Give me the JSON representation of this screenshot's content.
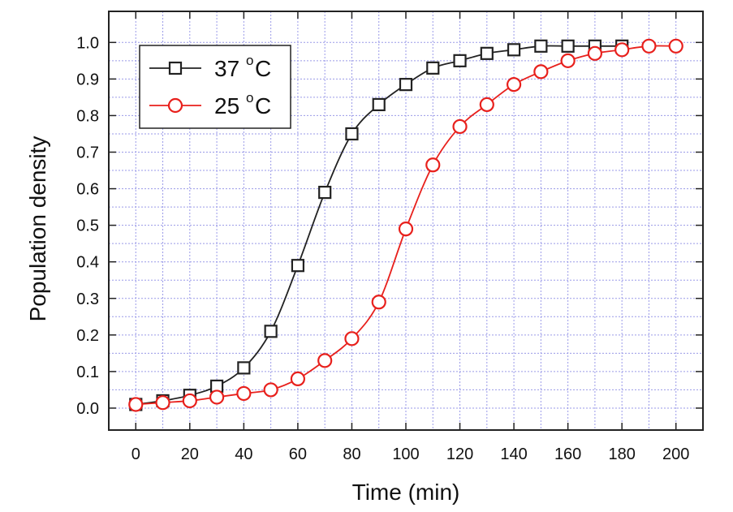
{
  "chart_data": {
    "type": "line",
    "xlabel": "Time (min)",
    "ylabel": "Population density",
    "xlim": [
      -10,
      210
    ],
    "ylim": [
      -0.06,
      1.085
    ],
    "xticks": [
      0,
      20,
      40,
      60,
      80,
      100,
      120,
      140,
      160,
      180,
      200
    ],
    "yticks": [
      0.0,
      0.1,
      0.2,
      0.3,
      0.4,
      0.5,
      0.6,
      0.7,
      0.8,
      0.9,
      1.0
    ],
    "ytick_labels": [
      "0.0",
      "0.1",
      "0.2",
      "0.3",
      "0.4",
      "0.5",
      "0.6",
      "0.7",
      "0.8",
      "0.9",
      "1.0"
    ],
    "grid": true,
    "legend_position": "top-left",
    "series": [
      {
        "name": "37",
        "unit": "°C",
        "marker": "square",
        "color": "#222222",
        "x": [
          0,
          10,
          20,
          30,
          40,
          50,
          60,
          70,
          80,
          90,
          100,
          110,
          120,
          130,
          140,
          150,
          160,
          170,
          180
        ],
        "y": [
          0.01,
          0.02,
          0.035,
          0.06,
          0.11,
          0.21,
          0.39,
          0.59,
          0.75,
          0.83,
          0.885,
          0.93,
          0.95,
          0.97,
          0.98,
          0.99,
          0.99,
          0.99,
          0.99
        ]
      },
      {
        "name": "25",
        "unit": "°C",
        "marker": "circle",
        "color": "#e8201c",
        "x": [
          0,
          10,
          20,
          30,
          40,
          50,
          60,
          70,
          80,
          90,
          100,
          110,
          120,
          130,
          140,
          150,
          160,
          170,
          180,
          190,
          200
        ],
        "y": [
          0.01,
          0.015,
          0.02,
          0.03,
          0.04,
          0.05,
          0.08,
          0.13,
          0.19,
          0.29,
          0.49,
          0.665,
          0.77,
          0.83,
          0.885,
          0.92,
          0.95,
          0.97,
          0.98,
          0.99,
          0.99
        ]
      }
    ]
  }
}
